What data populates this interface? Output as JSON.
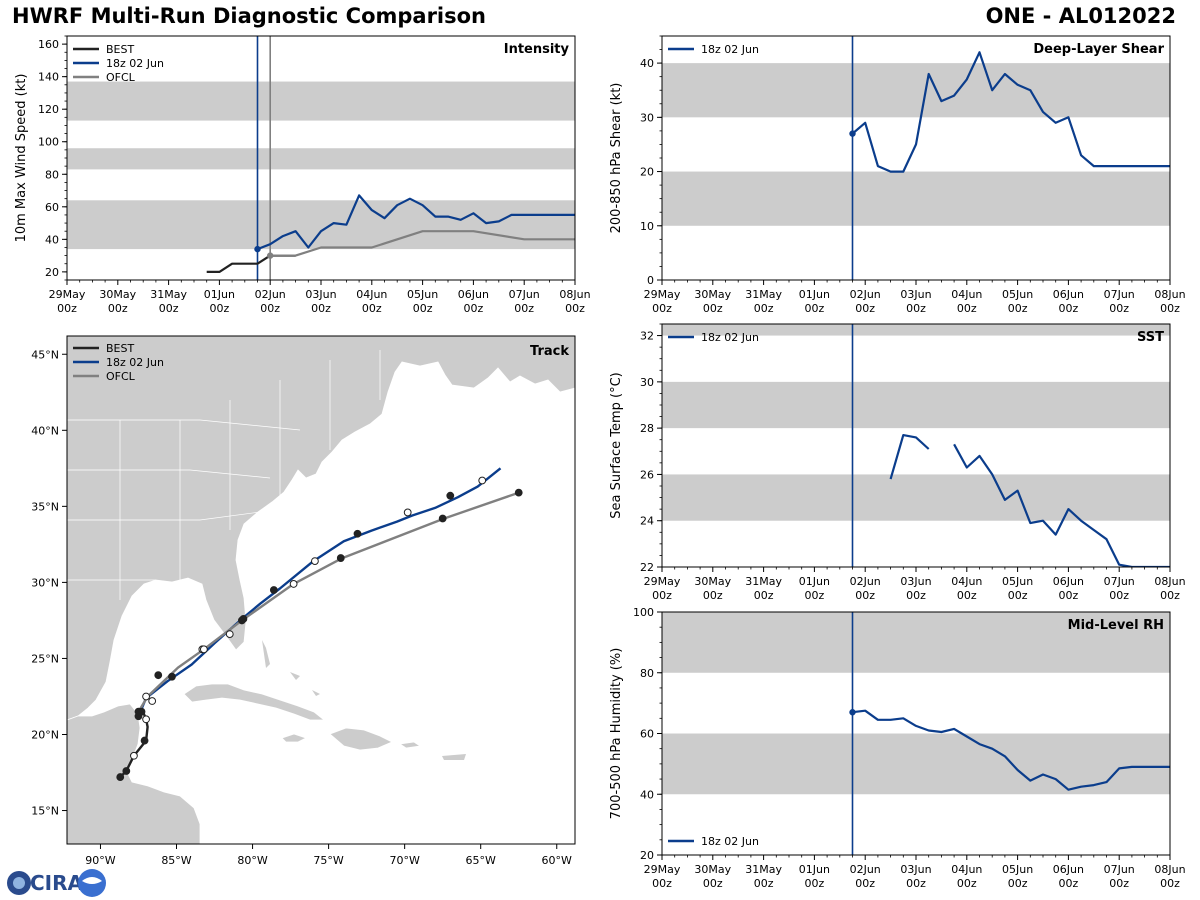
{
  "header": {
    "title": "HWRF Multi-Run Diagnostic Comparison",
    "storm": "ONE - AL012022"
  },
  "logo": {
    "text": "CIRA"
  },
  "colors": {
    "best": "#222222",
    "hwrf": "#0b3d8c",
    "ofcl": "#808080",
    "band": "#cccccc",
    "land": "#cccccc"
  },
  "time_axis": {
    "labels": [
      "29May",
      "30May",
      "31May",
      "01Jun",
      "02Jun",
      "03Jun",
      "04Jun",
      "05Jun",
      "06Jun",
      "07Jun",
      "08Jun"
    ],
    "sublabel": "00z",
    "init_hour": 90
  },
  "chart_data": [
    {
      "id": "intensity",
      "type": "line",
      "title": "Intensity",
      "ylabel": "10m Max Wind Speed (kt)",
      "ylim": [
        15,
        165
      ],
      "yticks": [
        20,
        40,
        60,
        80,
        100,
        120,
        140,
        160
      ],
      "bands": [
        [
          34,
          64
        ],
        [
          83,
          96
        ],
        [
          113,
          137
        ]
      ],
      "ofcl_init_hour": 96,
      "legend": [
        "BEST",
        "18z 02 Jun",
        "OFCL"
      ],
      "series": [
        {
          "name": "BEST",
          "key": "best",
          "x": [
            66,
            72,
            78,
            84,
            90,
            96,
            102,
            108
          ],
          "y": [
            20,
            20,
            25,
            25,
            25,
            30,
            30,
            30
          ]
        },
        {
          "name": "18z 02 Jun",
          "key": "hwrf",
          "x": [
            90,
            96,
            102,
            108,
            114,
            120,
            126,
            132,
            138,
            144,
            150,
            156,
            162,
            168,
            174,
            180,
            186,
            192,
            198,
            204,
            210,
            216,
            222,
            228,
            234,
            240
          ],
          "y": [
            34,
            37,
            42,
            45,
            35,
            45,
            50,
            49,
            67,
            58,
            53,
            61,
            65,
            61,
            54,
            54,
            52,
            56,
            50,
            51,
            55,
            55,
            55,
            55,
            55,
            55
          ]
        },
        {
          "name": "OFCL",
          "key": "ofcl",
          "x": [
            96,
            108,
            120,
            144,
            168,
            192,
            216,
            240
          ],
          "y": [
            30,
            30,
            35,
            35,
            45,
            45,
            40,
            40
          ]
        }
      ]
    },
    {
      "id": "shear",
      "type": "line",
      "title": "Deep-Layer Shear",
      "ylabel": "200-850 hPa Shear (kt)",
      "ylim": [
        0,
        45
      ],
      "yticks": [
        0,
        10,
        20,
        30,
        40
      ],
      "bands": [
        [
          10,
          20
        ],
        [
          30,
          40
        ]
      ],
      "legend": [
        "18z 02 Jun"
      ],
      "series": [
        {
          "name": "18z 02 Jun",
          "key": "hwrf",
          "x": [
            90,
            96,
            102,
            108,
            114,
            120,
            126,
            132,
            138,
            144,
            150,
            156,
            162,
            168,
            174,
            180,
            186,
            192,
            198,
            204,
            210,
            216,
            222,
            228,
            234,
            240
          ],
          "y": [
            27,
            29,
            21,
            20,
            20,
            25,
            38,
            33,
            34,
            37,
            42,
            35,
            38,
            36,
            35,
            31,
            29,
            30,
            23,
            21,
            21,
            21,
            21,
            21,
            21,
            21
          ]
        }
      ]
    },
    {
      "id": "sst",
      "type": "line",
      "title": "SST",
      "ylabel": "Sea Surface Temp (°C)",
      "ylim": [
        22,
        32.5
      ],
      "yticks": [
        22,
        24,
        26,
        28,
        30,
        32
      ],
      "bands": [
        [
          24,
          26
        ],
        [
          28,
          30
        ],
        [
          32,
          32.5
        ]
      ],
      "legend": [
        "18z 02 Jun"
      ],
      "series": [
        {
          "name": "18z 02 Jun",
          "key": "hwrf",
          "segments": [
            {
              "x": [
                108,
                114,
                120,
                126
              ],
              "y": [
                25.8,
                27.7,
                27.6,
                27.1
              ]
            },
            {
              "x": [
                138,
                144,
                150,
                156,
                162,
                168,
                174,
                180,
                186,
                192,
                198,
                204,
                210,
                216,
                222,
                228,
                234,
                240
              ],
              "y": [
                27.3,
                26.3,
                26.8,
                26.0,
                24.9,
                25.3,
                23.9,
                24.0,
                23.4,
                24.5,
                24.0,
                23.6,
                23.2,
                22.1,
                22.0,
                22.0,
                22.0,
                22.0
              ]
            }
          ]
        }
      ]
    },
    {
      "id": "rh",
      "type": "line",
      "title": "Mid-Level RH",
      "ylabel": "700-500 hPa Humidity (%)",
      "ylim": [
        20,
        100
      ],
      "yticks": [
        20,
        40,
        60,
        80,
        100
      ],
      "bands": [
        [
          40,
          60
        ],
        [
          80,
          100
        ]
      ],
      "legend": [
        "18z 02 Jun"
      ],
      "series": [
        {
          "name": "18z 02 Jun",
          "key": "hwrf",
          "x": [
            90,
            96,
            102,
            108,
            114,
            120,
            126,
            132,
            138,
            144,
            150,
            156,
            162,
            168,
            174,
            180,
            186,
            192,
            198,
            204,
            210,
            216,
            222,
            228,
            234,
            240
          ],
          "y": [
            67,
            67.5,
            64.5,
            64.5,
            65,
            62.5,
            61,
            60.5,
            61.5,
            59,
            56.5,
            55,
            52.5,
            48,
            44.5,
            46.5,
            45,
            41.5,
            42.5,
            43,
            44,
            48.5,
            49,
            49,
            49,
            49
          ]
        }
      ]
    },
    {
      "id": "track",
      "type": "scatter",
      "title": "Track",
      "xlim": [
        -92.2,
        -58.8
      ],
      "ylim": [
        12.8,
        46.2
      ],
      "xticks": [
        -90,
        -85,
        -80,
        -75,
        -70,
        -65,
        -60
      ],
      "xtick_labels": [
        "90°W",
        "85°W",
        "80°W",
        "75°W",
        "70°W",
        "65°W",
        "60°W"
      ],
      "yticks": [
        15,
        20,
        25,
        30,
        35,
        40,
        45
      ],
      "ytick_labels": [
        "15°N",
        "20°N",
        "25°N",
        "30°N",
        "35°N",
        "40°N",
        "45°N"
      ],
      "legend": [
        "BEST",
        "18z 02 Jun",
        "OFCL"
      ],
      "series": [
        {
          "name": "BEST",
          "key": "best",
          "lon": [
            -88.7,
            -88.3,
            -87.8,
            -87.0,
            -86.9,
            -87.0,
            -87.2,
            -87.5
          ],
          "lat": [
            17.2,
            17.6,
            18.6,
            19.6,
            20.5,
            21.0,
            21.5,
            21.6
          ],
          "markers": [
            [
              -88.7,
              17.2,
              "filled"
            ],
            [
              -88.3,
              17.6,
              "filled"
            ],
            [
              -87.8,
              18.6,
              "open"
            ],
            [
              -87.1,
              19.6,
              "filled"
            ],
            [
              -87.0,
              21.0,
              "open"
            ],
            [
              -87.3,
              21.5,
              "filled"
            ]
          ]
        },
        {
          "name": "18z 02 Jun",
          "key": "hwrf",
          "lon": [
            -87.5,
            -87.0,
            -85.6,
            -84.0,
            -82.5,
            -80.7,
            -79.5,
            -78.2,
            -76.0,
            -74.0,
            -72.2,
            -70.5,
            -69.5,
            -68.0,
            -66.5,
            -65.2,
            -63.7
          ],
          "lat": [
            21.2,
            22.4,
            23.5,
            24.6,
            26.0,
            27.6,
            28.6,
            29.6,
            31.4,
            32.7,
            33.4,
            34.0,
            34.4,
            34.9,
            35.6,
            36.3,
            37.5
          ],
          "markers": [
            [
              -87.5,
              21.2,
              "filled"
            ],
            [
              -86.6,
              22.2,
              "open"
            ],
            [
              -85.3,
              23.8,
              "filled"
            ],
            [
              -83.3,
              25.6,
              "open"
            ],
            [
              -80.6,
              27.6,
              "filled"
            ],
            [
              -78.6,
              29.5,
              "filled"
            ],
            [
              -75.9,
              31.4,
              "open"
            ],
            [
              -73.1,
              33.2,
              "filled"
            ],
            [
              -69.8,
              34.6,
              "open"
            ],
            [
              -67.0,
              35.7,
              "filled"
            ],
            [
              -64.9,
              36.7,
              "open"
            ]
          ]
        },
        {
          "name": "OFCL",
          "key": "ofcl",
          "lon": [
            -87.5,
            -86.9,
            -84.9,
            -83.2,
            -80.7,
            -77.3,
            -74.1,
            -67.4,
            -62.5
          ],
          "lat": [
            21.5,
            22.5,
            24.4,
            25.6,
            27.5,
            29.9,
            31.6,
            34.2,
            35.9
          ],
          "markers": [
            [
              -87.5,
              21.5,
              "filled"
            ],
            [
              -87.0,
              22.5,
              "open"
            ],
            [
              -86.2,
              23.9,
              "filled"
            ],
            [
              -83.2,
              25.6,
              "open"
            ],
            [
              -81.5,
              26.6,
              "open"
            ],
            [
              -80.7,
              27.5,
              "filled"
            ],
            [
              -77.3,
              29.9,
              "open"
            ],
            [
              -74.2,
              31.6,
              "filled"
            ],
            [
              -67.5,
              34.2,
              "filled"
            ],
            [
              -62.5,
              35.9,
              "filled"
            ]
          ]
        }
      ]
    }
  ]
}
